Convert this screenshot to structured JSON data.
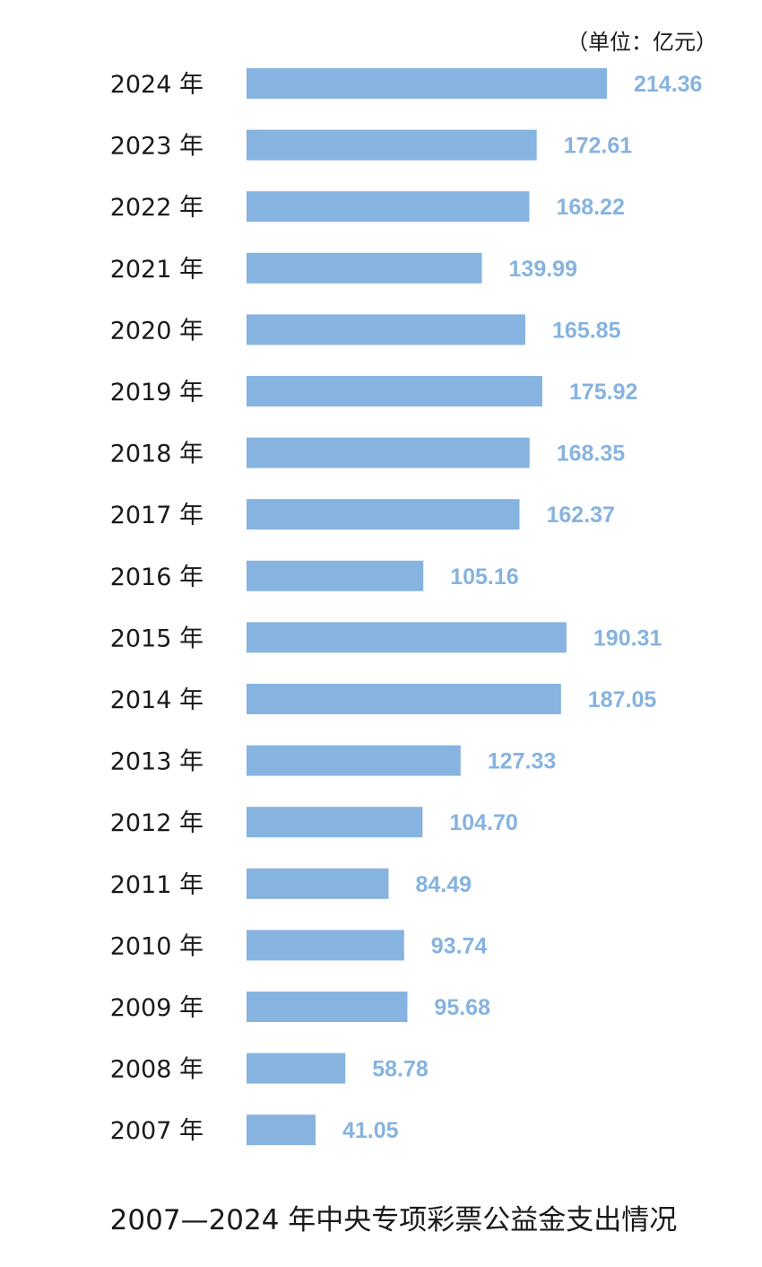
{
  "chart_data": {
    "type": "bar",
    "orientation": "horizontal",
    "title": "2007—2024 年中央专项彩票公益金支出情况",
    "unit": "（单位：亿元）",
    "categories": [
      "2024 年",
      "2023 年",
      "2022 年",
      "2021 年",
      "2020 年",
      "2019 年",
      "2018 年",
      "2017 年",
      "2016 年",
      "2015 年",
      "2014 年",
      "2013 年",
      "2012 年",
      "2011 年",
      "2010 年",
      "2009 年",
      "2008 年",
      "2007 年"
    ],
    "values": [
      214.36,
      172.61,
      168.22,
      139.99,
      165.85,
      175.92,
      168.35,
      162.37,
      105.16,
      190.31,
      187.05,
      127.33,
      104.7,
      84.49,
      93.74,
      95.68,
      58.78,
      41.05
    ],
    "value_labels": [
      "214.36",
      "172.61",
      "168.22",
      "139.99",
      "165.85",
      "175.92",
      "168.35",
      "162.37",
      "105.16",
      "190.31",
      "187.05",
      "127.33",
      "104.70",
      "84.49",
      "93.74",
      "95.68",
      "58.78",
      "41.05"
    ],
    "xlim": [
      0,
      214.36
    ],
    "grid": false,
    "legend": "none",
    "colors": {
      "bar": "#86b3e0",
      "value_label": "#86b3e0",
      "category_label": "#1a1a1a"
    }
  }
}
